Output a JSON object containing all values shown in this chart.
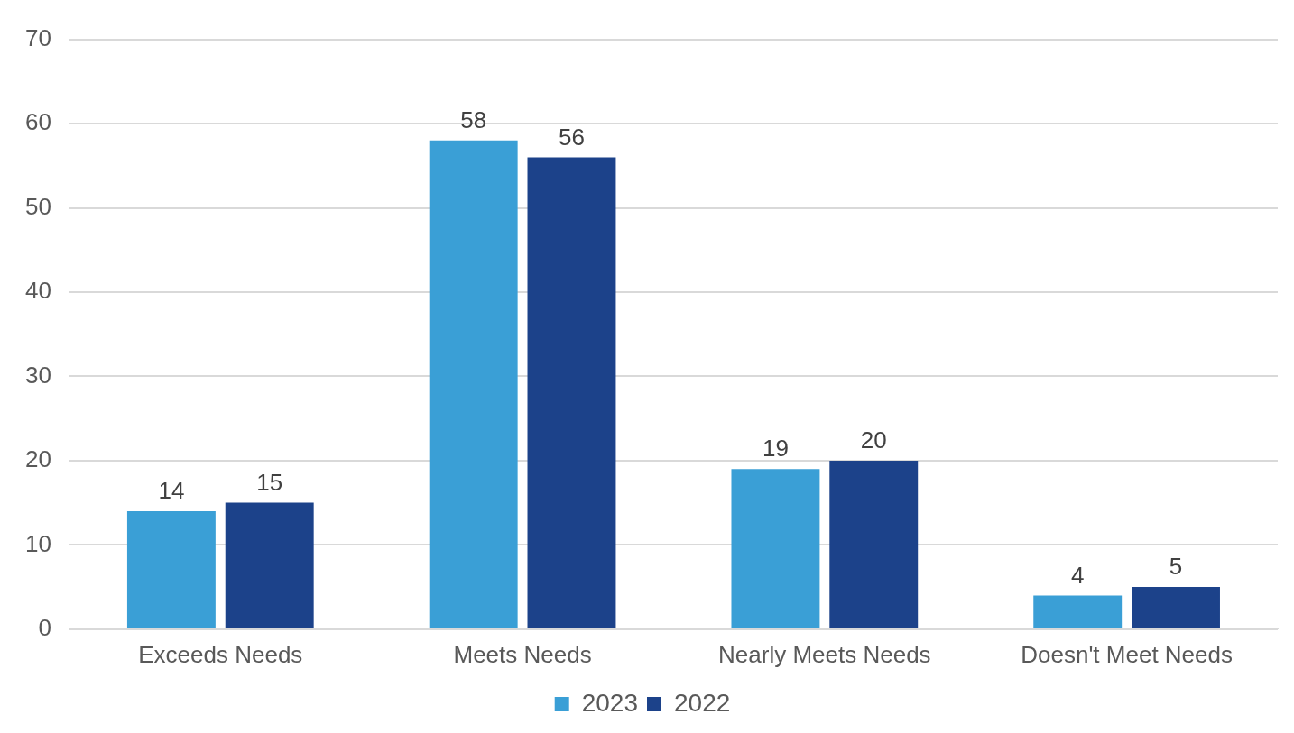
{
  "chart_data": {
    "type": "bar",
    "categories": [
      "Exceeds Needs",
      "Meets Needs",
      "Nearly Meets Needs",
      "Doesn't Meet Needs"
    ],
    "series": [
      {
        "name": "2023",
        "color": "#3a9fd6",
        "values": [
          14,
          58,
          19,
          4
        ]
      },
      {
        "name": "2022",
        "color": "#1c428a",
        "values": [
          15,
          56,
          20,
          5
        ]
      }
    ],
    "ylim": [
      0,
      70
    ],
    "yticks": [
      0,
      10,
      20,
      30,
      40,
      50,
      60,
      70
    ],
    "grid": "y",
    "legend": "bottom",
    "data_labels": true
  }
}
